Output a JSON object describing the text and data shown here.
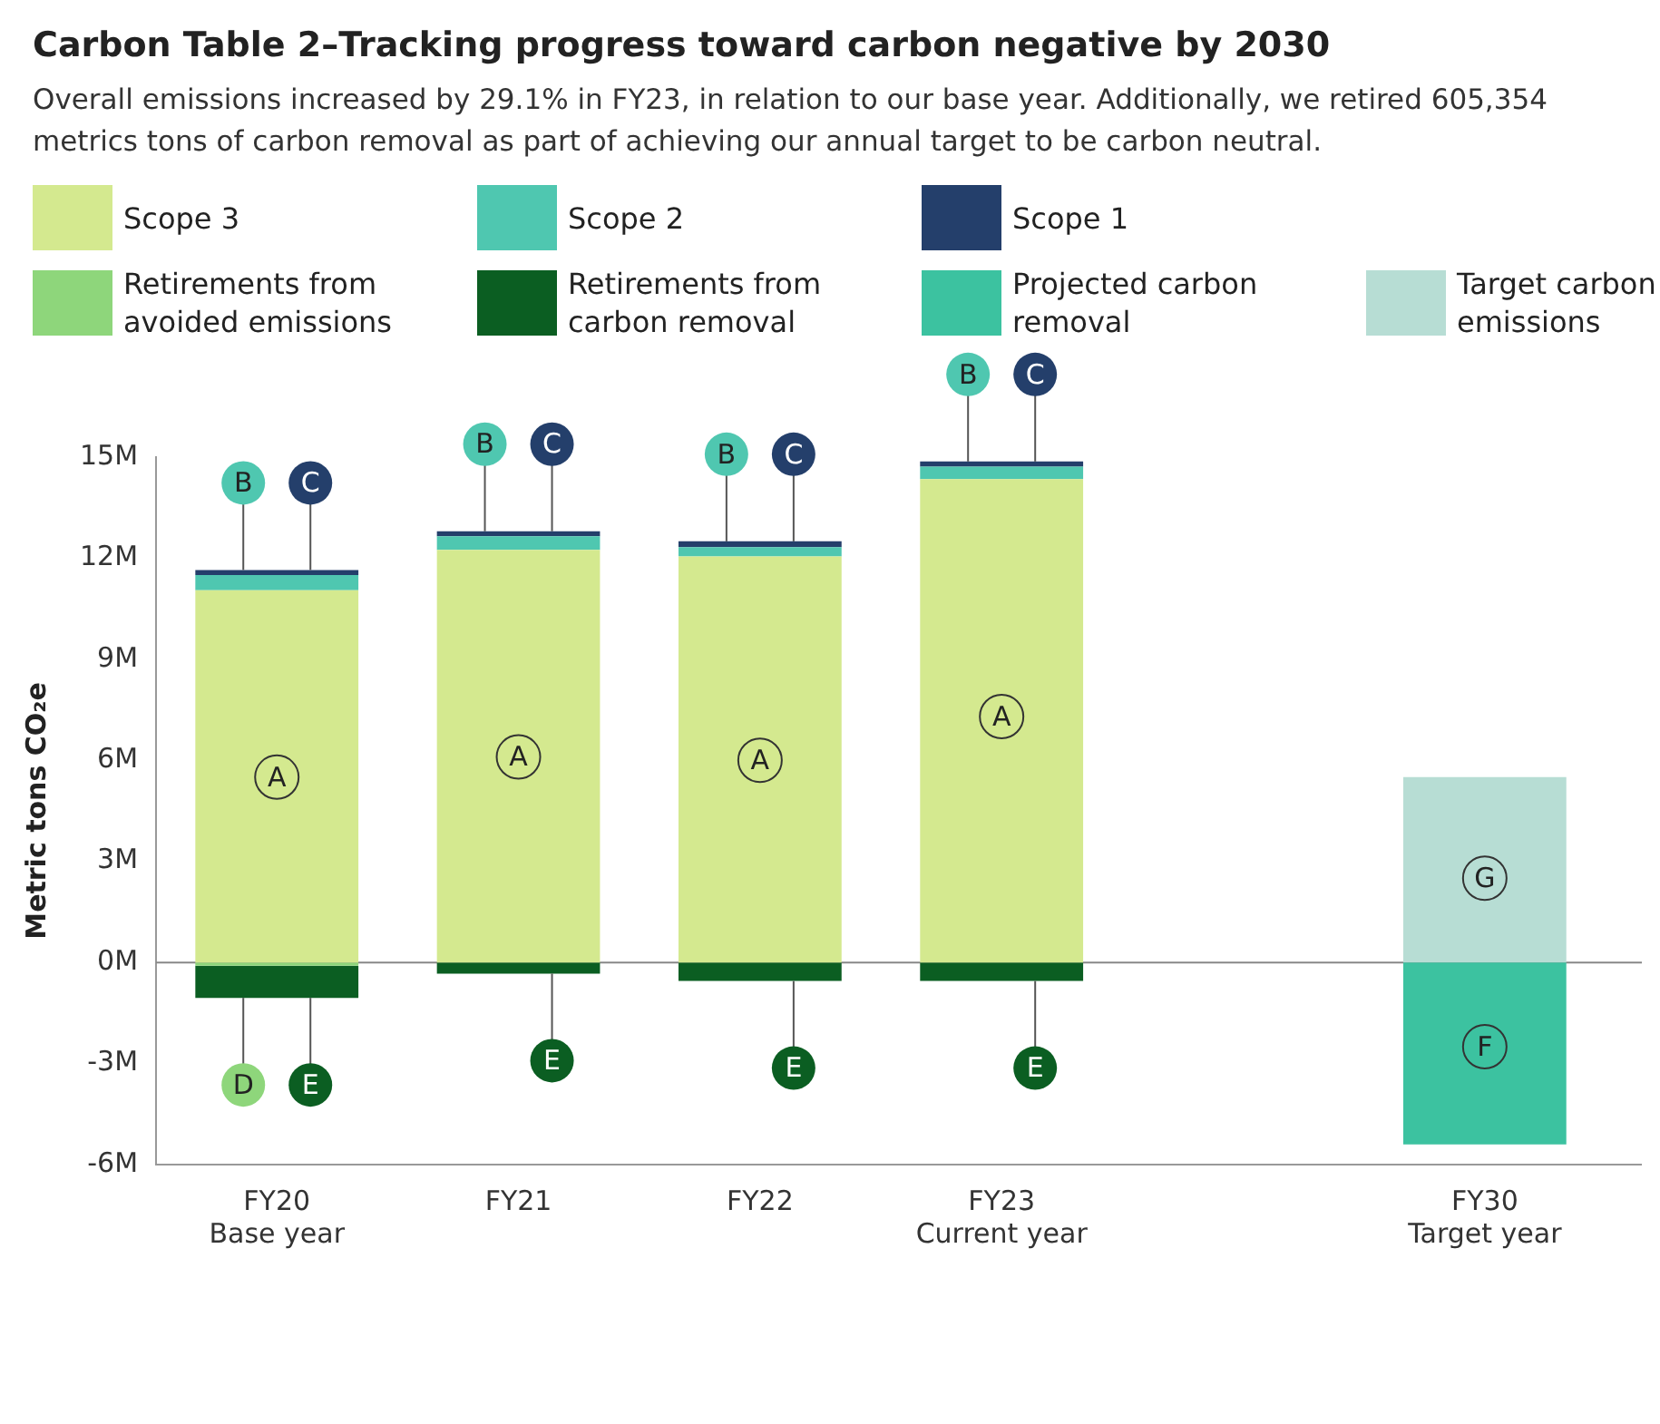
{
  "chart_data": {
    "type": "bar",
    "stacked": true,
    "title": "Carbon Table 2–Tracking progress toward carbon negative by 2030",
    "subtitle": "Overall emissions increased by 29.1% in FY23, in relation to our base year. Additionally, we retired 605,354 metrics tons of carbon removal as part of achieving our annual target to be carbon neutral.",
    "ylabel": "Metric tons CO₂e",
    "categories": [
      "FY20\nBase year",
      "FY21",
      "FY22",
      "FY23\nCurrent year",
      null,
      "FY30\nTarget year"
    ],
    "series": [
      {
        "name": "Scope 3",
        "color": "#d4e98f",
        "values": [
          11.05,
          12.25,
          12.05,
          14.35,
          null,
          null
        ]
      },
      {
        "name": "Scope 2",
        "color": "#4fc7b0",
        "values": [
          0.45,
          0.4,
          0.28,
          0.37,
          null,
          null
        ]
      },
      {
        "name": "Scope 1",
        "color": "#243f6b",
        "values": [
          0.15,
          0.15,
          0.17,
          0.15,
          null,
          null
        ]
      },
      {
        "name": "Retirements from avoided emissions",
        "color": "#8ed67b",
        "values": [
          -0.1,
          null,
          null,
          null,
          null,
          null
        ]
      },
      {
        "name": "Retirements from carbon removal",
        "color": "#0b5e22",
        "values": [
          -0.95,
          -0.33,
          -0.55,
          -0.55,
          null,
          null
        ]
      },
      {
        "name": "Projected carbon removal",
        "color": "#3cc2a0",
        "values": [
          null,
          null,
          null,
          null,
          null,
          -5.4
        ]
      },
      {
        "name": "Target carbon emissions",
        "color": "#b7ddd4",
        "values": [
          null,
          null,
          null,
          null,
          null,
          5.5
        ]
      }
    ],
    "ylim": [
      -6,
      15
    ],
    "yticks": [
      {
        "value": -6,
        "label": "-6M"
      },
      {
        "value": -3,
        "label": "-3M"
      },
      {
        "value": 0,
        "label": "0M"
      },
      {
        "value": 3,
        "label": "3M"
      },
      {
        "value": 6,
        "label": "6M"
      },
      {
        "value": 9,
        "label": "9M"
      },
      {
        "value": 12,
        "label": "12M"
      },
      {
        "value": 15,
        "label": "15M"
      }
    ],
    "ref_lines": [
      {
        "axis": "y",
        "value": 0,
        "color": "#888888"
      }
    ],
    "grid": false,
    "legend": "top",
    "annotations": [
      {
        "text": "A",
        "x": "FY20\nBase year",
        "y": 5.5
      },
      {
        "text": "B",
        "x": "FY20\nBase year",
        "y": 11.65
      },
      {
        "text": "C",
        "x": "FY20\nBase year",
        "y": 11.65
      },
      {
        "text": "D",
        "x": "FY20\nBase year",
        "y": -1.05
      },
      {
        "text": "E",
        "x": "FY20\nBase year",
        "y": -1.05
      },
      {
        "text": "A",
        "x": "FY21",
        "y": 6.1
      },
      {
        "text": "B",
        "x": "FY21",
        "y": 12.8
      },
      {
        "text": "C",
        "x": "FY21",
        "y": 12.8
      },
      {
        "text": "E",
        "x": "FY21",
        "y": -0.33
      },
      {
        "text": "A",
        "x": "FY22",
        "y": 6
      },
      {
        "text": "B",
        "x": "FY22",
        "y": 12.5
      },
      {
        "text": "C",
        "x": "FY22",
        "y": 12.5
      },
      {
        "text": "E",
        "x": "FY22",
        "y": -0.55
      },
      {
        "text": "A",
        "x": "FY23\nCurrent year",
        "y": 7.3
      },
      {
        "text": "B",
        "x": "FY23\nCurrent year",
        "y": 14.87
      },
      {
        "text": "C",
        "x": "FY23\nCurrent year",
        "y": 14.87
      },
      {
        "text": "E",
        "x": "FY23\nCurrent year",
        "y": -0.55
      },
      {
        "text": "G",
        "x": "FY30\nTarget year",
        "y": 2.5
      },
      {
        "text": "F",
        "x": "FY30\nTarget year",
        "y": -2.5
      }
    ]
  }
}
